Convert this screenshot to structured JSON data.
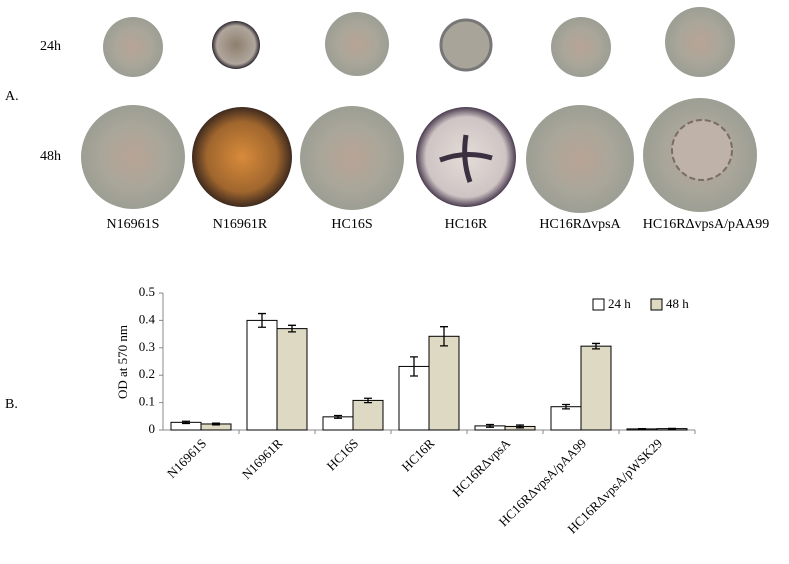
{
  "panel_labels": [
    "A.",
    "B."
  ],
  "colony_panel": {
    "rows": [
      "24h",
      "48h"
    ],
    "strains": [
      "N16961S",
      "N16961R",
      "HC16S",
      "HC16R",
      "HC16RΔvpsA",
      "HC16RΔvpsA/pAA99"
    ]
  },
  "chart_data": {
    "type": "bar",
    "y_label": "OD at 570 nm",
    "categories": [
      "N16961S",
      "N16961R",
      "HC16S",
      "HC16R",
      "HC16RΔvpsA",
      "HC16RΔvpsA/pAA99",
      "HC16RΔvpsA/pWSK29"
    ],
    "series": [
      {
        "name": "24 h",
        "color": "#ffffff",
        "values": [
          0.028,
          0.4,
          0.048,
          0.232,
          0.015,
          0.085,
          0.004
        ],
        "errors": [
          0.004,
          0.025,
          0.005,
          0.035,
          0.005,
          0.008,
          0.001
        ]
      },
      {
        "name": "48 h",
        "color": "#ddd9c3",
        "values": [
          0.022,
          0.37,
          0.108,
          0.342,
          0.013,
          0.306,
          0.005
        ],
        "errors": [
          0.003,
          0.012,
          0.008,
          0.035,
          0.005,
          0.01,
          0.001
        ]
      }
    ],
    "ylim": [
      0,
      0.5
    ],
    "yticks": [
      0,
      0.1,
      0.2,
      0.3,
      0.4,
      0.5
    ],
    "legend": "upper right"
  }
}
